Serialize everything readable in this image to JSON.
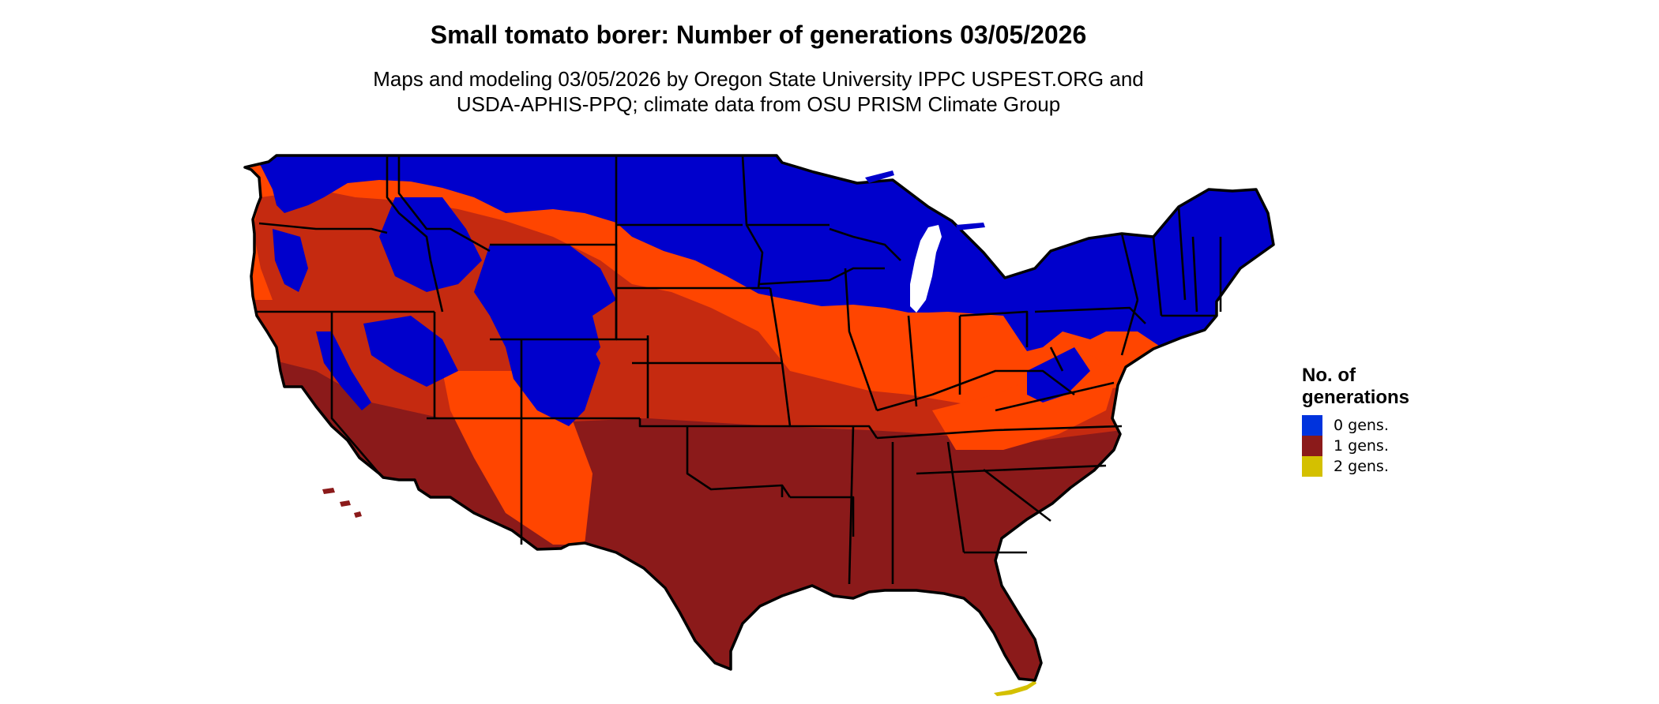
{
  "header": {
    "title": "Small tomato borer: Number of generations 03/05/2026",
    "subtitle_line1": "Maps and modeling 03/05/2026 by Oregon State University IPPC USPEST.ORG and",
    "subtitle_line2": "USDA-APHIS-PPQ; climate data from OSU PRISM Climate Group"
  },
  "map": {
    "region": "Contiguous United States",
    "colors": {
      "zero_gens": "#0000cc",
      "one_gen_dark": "#8b1a1a",
      "one_gen_mid": "#c52a10",
      "one_gen_light": "#ff4500",
      "two_gens": "#d4c000",
      "border": "#000000"
    }
  },
  "legend": {
    "title_line1": "No. of",
    "title_line2": "generations",
    "items": [
      {
        "label": "0 gens.",
        "color": "#0033dd"
      },
      {
        "label": "1 gens.",
        "color": "#8b1a1a"
      },
      {
        "label": "2 gens.",
        "color": "#d4c000"
      }
    ]
  }
}
